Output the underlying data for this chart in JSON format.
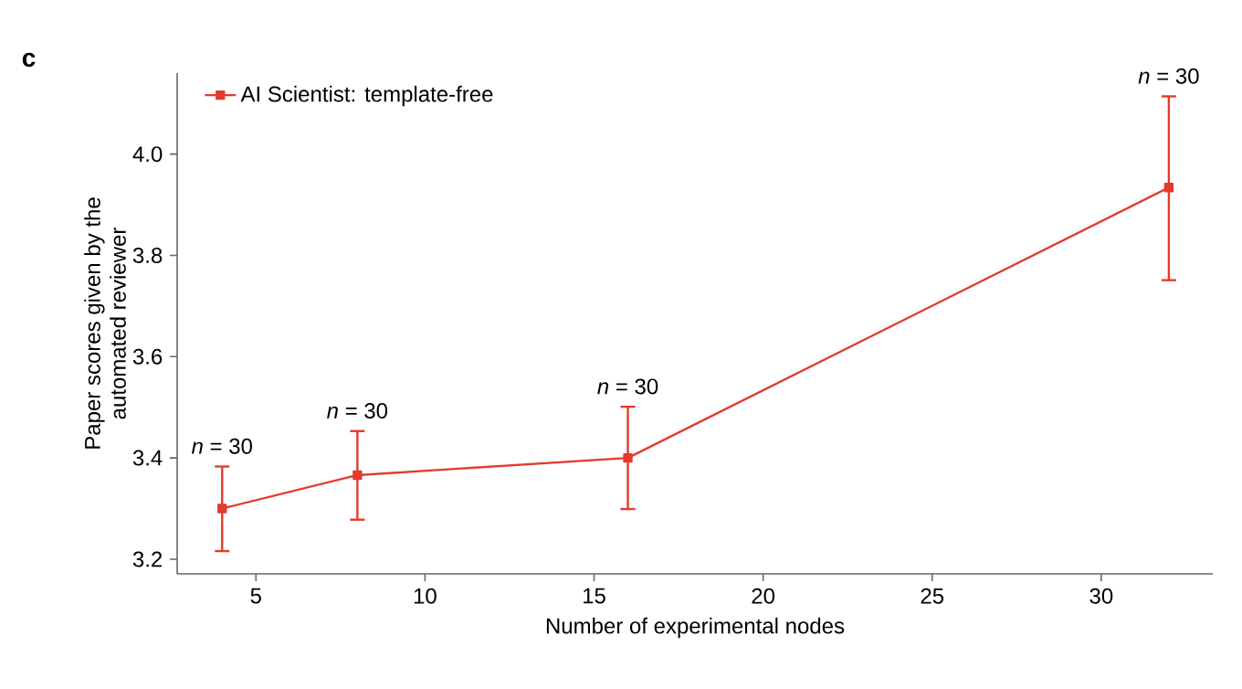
{
  "chart_data": {
    "type": "line",
    "xlabel": "Number of experimental nodes",
    "ylabel": "Paper scores given by the automated reviewer",
    "x": [
      4,
      8,
      16,
      32
    ],
    "series": [
      {
        "name": "AI Scientist: template-free",
        "color": "#e33b2e",
        "values": [
          3.3,
          3.366,
          3.4,
          3.934
        ],
        "errors": [
          [
            3.216,
            3.383
          ],
          [
            3.278,
            3.453
          ],
          [
            3.299,
            3.501
          ],
          [
            3.751,
            4.114
          ]
        ]
      }
    ],
    "xlim": [
      2.67,
      33.3
    ],
    "ylim": [
      3.171,
      4.16
    ],
    "xticks": [
      5,
      10,
      15,
      20,
      25,
      30
    ],
    "yticks": [
      {
        "value": 3.2,
        "label": "3.2"
      },
      {
        "value": 3.4,
        "label": "3.4"
      },
      {
        "value": 3.6,
        "label": "3.6"
      },
      {
        "value": 3.8,
        "label": "3.8"
      },
      {
        "value": 4.0,
        "label": "4.0"
      }
    ],
    "annotations": [
      "**c**",
      {
        "text": "*n* = 30",
        "x": 4,
        "y": 3.383
      },
      {
        "text": "*n* = 30",
        "x": 8,
        "y": 3.453
      },
      {
        "text": "*n* = 30",
        "x": 16,
        "y": 3.501
      },
      {
        "text": "*n* = 30",
        "x": 32,
        "y": 4.114
      }
    ],
    "legend": "top left",
    "marker": "square",
    "line_style": "solid",
    "grid": false
  }
}
